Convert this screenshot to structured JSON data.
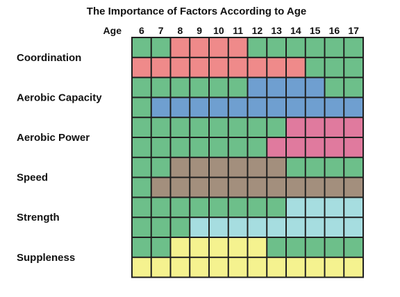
{
  "chart_data": {
    "type": "heatmap",
    "title": "The Importance of Factors According to Age",
    "xlabel": "Age",
    "categories": [
      "6",
      "7",
      "8",
      "9",
      "10",
      "11",
      "12",
      "13",
      "14",
      "15",
      "16",
      "17"
    ],
    "factors": [
      "Coordination",
      "Aerobic Capacity",
      "Aerobic Power",
      "Speed",
      "Strength",
      "Suppleness"
    ],
    "colors": {
      "G": "#6dbf8a",
      "R": "#ef8a8a",
      "B": "#6f9fd0",
      "P": "#e07a9e",
      "N": "#a38f7d",
      "C": "#a6dde0",
      "Y": "#f5f28f"
    },
    "grid": [
      [
        "G",
        "G",
        "R",
        "R",
        "R",
        "R",
        "G",
        "G",
        "G",
        "G",
        "G",
        "G"
      ],
      [
        "R",
        "R",
        "R",
        "R",
        "R",
        "R",
        "R",
        "R",
        "R",
        "G",
        "G",
        "G"
      ],
      [
        "G",
        "G",
        "G",
        "G",
        "G",
        "G",
        "B",
        "B",
        "B",
        "B",
        "G",
        "G"
      ],
      [
        "G",
        "B",
        "B",
        "B",
        "B",
        "B",
        "B",
        "B",
        "B",
        "B",
        "B",
        "B"
      ],
      [
        "G",
        "G",
        "G",
        "G",
        "G",
        "G",
        "G",
        "G",
        "P",
        "P",
        "P",
        "P"
      ],
      [
        "G",
        "G",
        "G",
        "G",
        "G",
        "G",
        "G",
        "P",
        "P",
        "P",
        "P",
        "P"
      ],
      [
        "G",
        "G",
        "N",
        "N",
        "N",
        "N",
        "N",
        "N",
        "G",
        "G",
        "G",
        "G"
      ],
      [
        "G",
        "N",
        "N",
        "N",
        "N",
        "N",
        "N",
        "N",
        "N",
        "N",
        "N",
        "N"
      ],
      [
        "G",
        "G",
        "G",
        "G",
        "G",
        "G",
        "G",
        "G",
        "C",
        "C",
        "C",
        "C"
      ],
      [
        "G",
        "G",
        "G",
        "C",
        "C",
        "C",
        "C",
        "C",
        "C",
        "C",
        "C",
        "C"
      ],
      [
        "G",
        "G",
        "Y",
        "Y",
        "Y",
        "Y",
        "Y",
        "G",
        "G",
        "G",
        "G",
        "G"
      ],
      [
        "Y",
        "Y",
        "Y",
        "Y",
        "Y",
        "Y",
        "Y",
        "Y",
        "Y",
        "Y",
        "Y",
        "Y"
      ]
    ]
  }
}
